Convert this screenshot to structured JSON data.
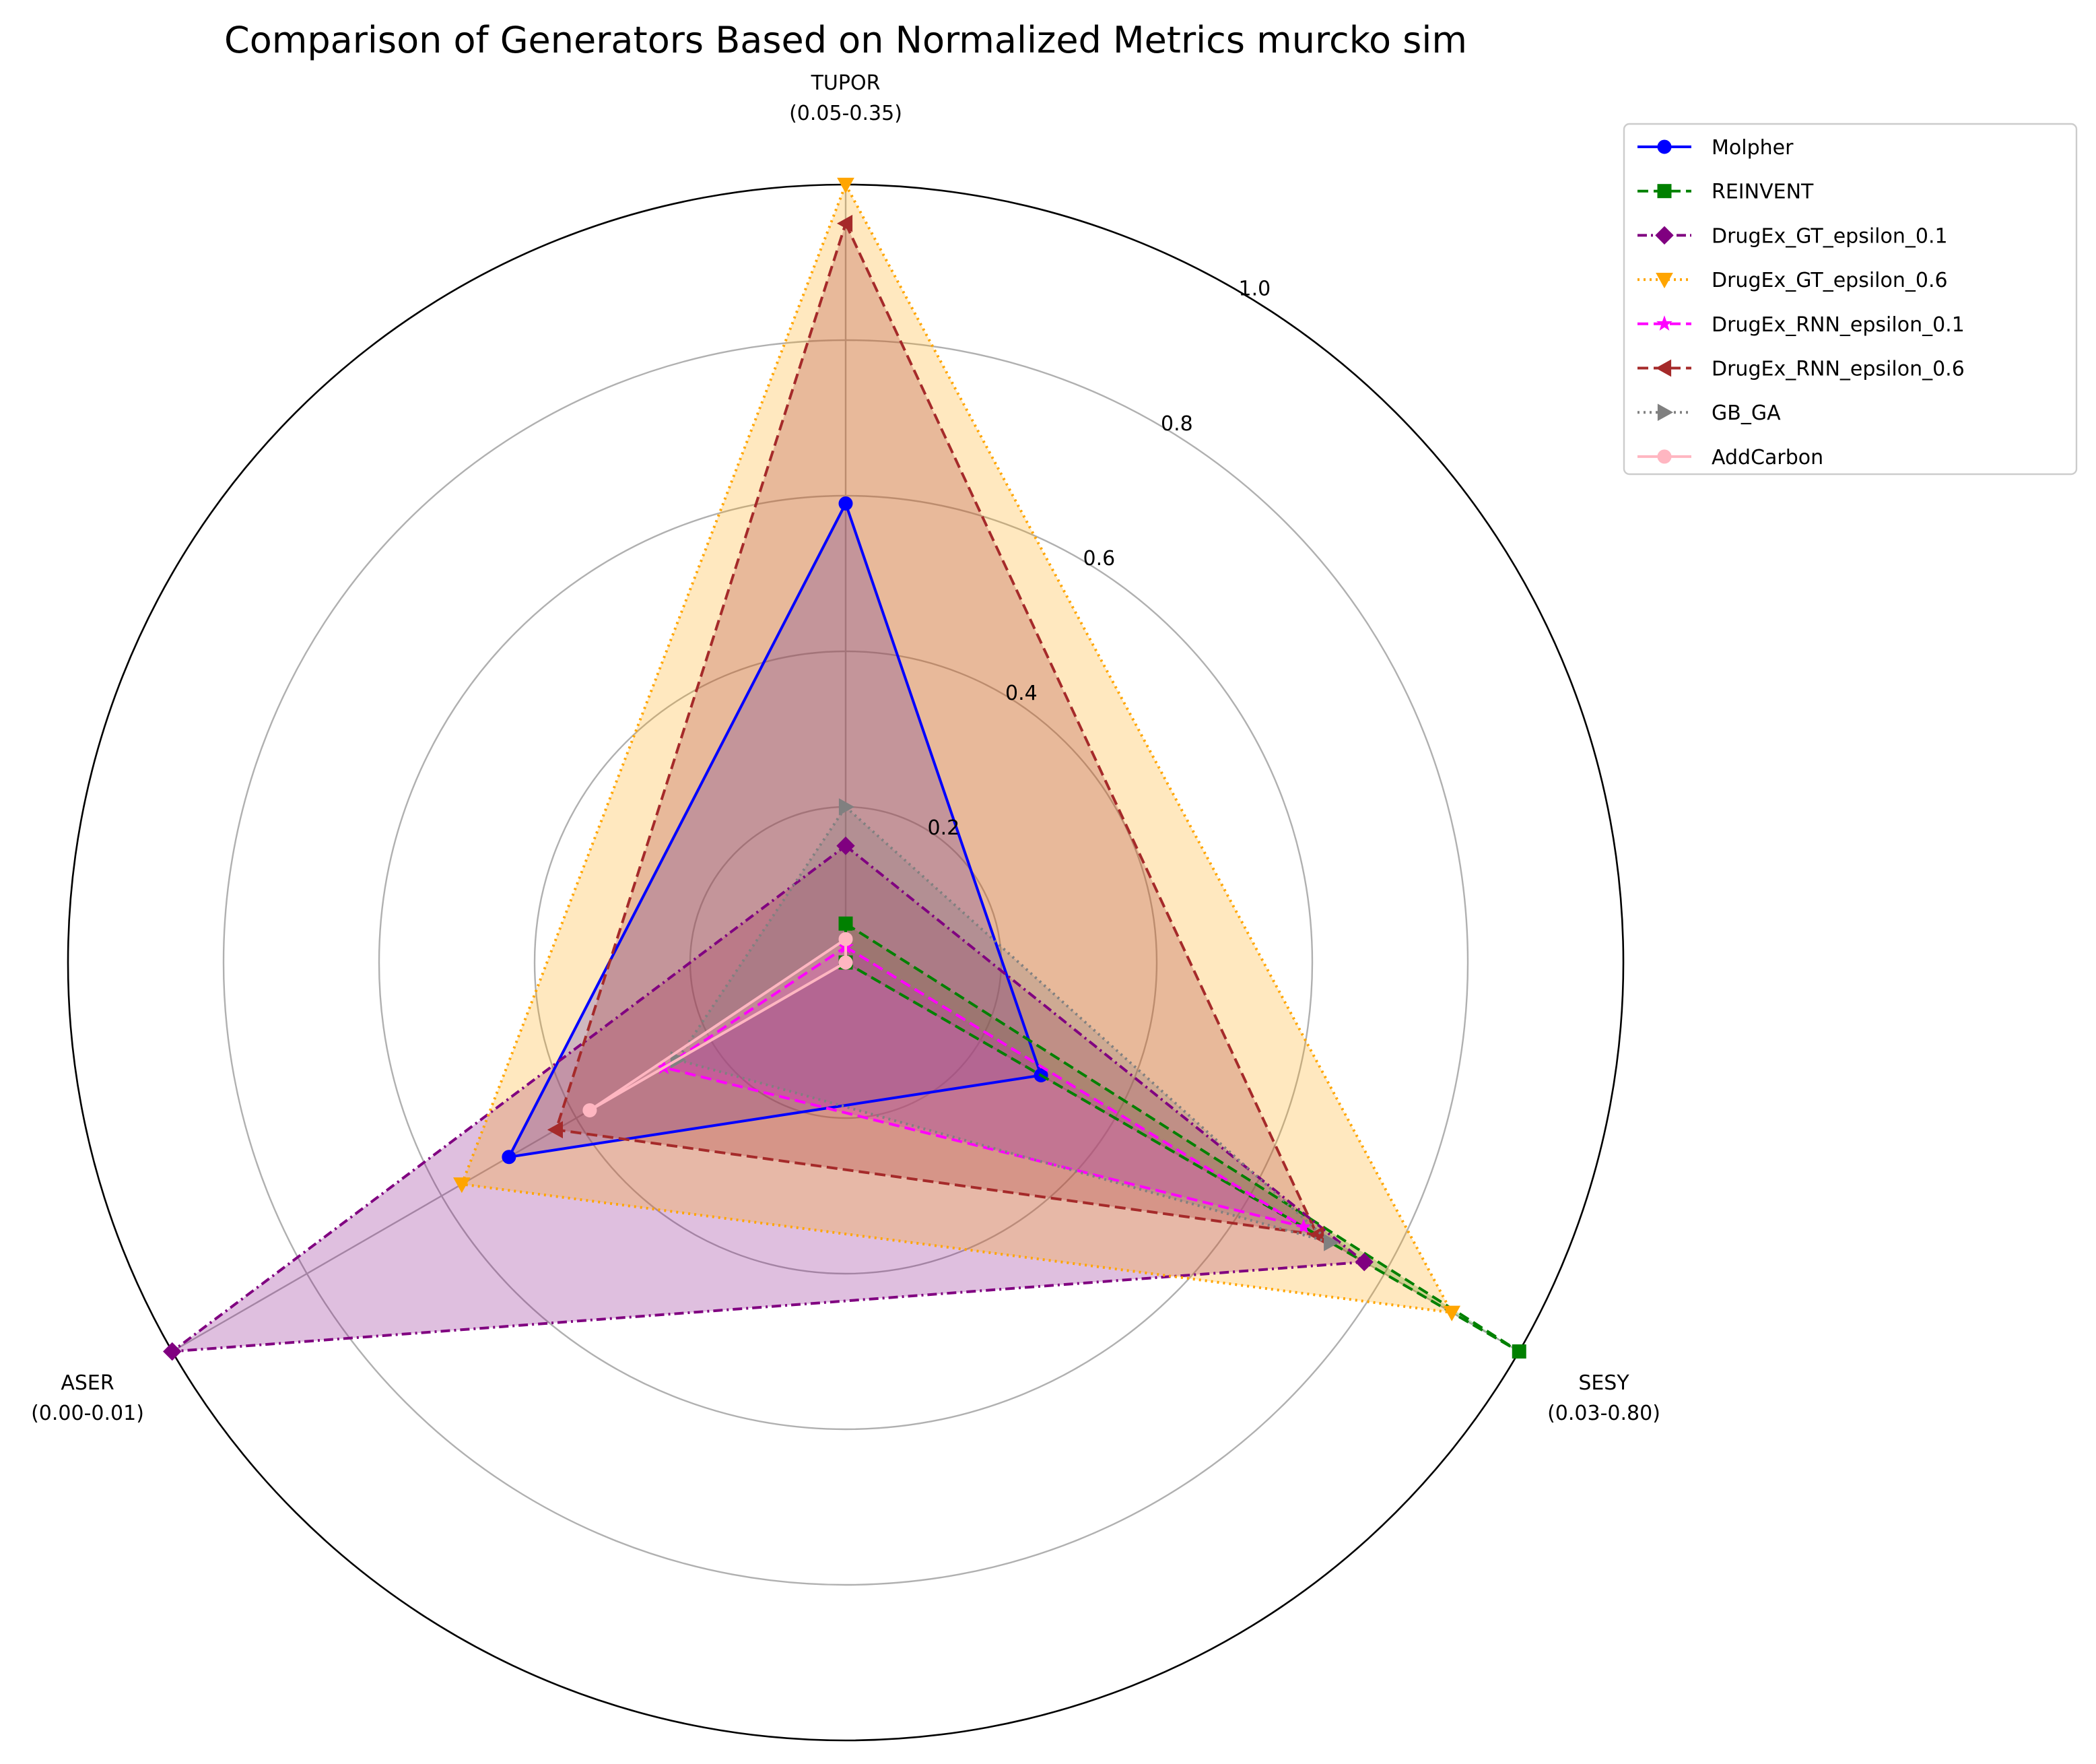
{
  "chart_data": {
    "type": "radar",
    "title": "Comparison of Generators Based on Normalized Metrics murcko sim",
    "axes": [
      {
        "name": "TUPOR",
        "range": "(0.05-0.35)"
      },
      {
        "name": "SESY",
        "range": "(0.03-0.80)"
      },
      {
        "name": "ASER",
        "range": "(0.00-0.01)"
      }
    ],
    "radial_ticks": [
      "0.2",
      "0.4",
      "0.6",
      "0.8",
      "1.0"
    ],
    "rlim": [
      0,
      1.0
    ],
    "grid": true,
    "legend_position": "top-right outside",
    "series": [
      {
        "name": "Molpher",
        "values": [
          0.59,
          0.29,
          0.5
        ],
        "color": "#0000ff",
        "dash": "",
        "marker": "circle",
        "fill": false
      },
      {
        "name": "REINVENT",
        "values": [
          0.05,
          1.0,
          0.0
        ],
        "color": "#008000",
        "dash": "16,8",
        "marker": "square",
        "fill": false
      },
      {
        "name": "DrugEx_GT_epsilon_0.1",
        "values": [
          0.15,
          0.77,
          1.0
        ],
        "color": "#800080",
        "dash": "14,6,3,6",
        "marker": "diamond",
        "fill": true
      },
      {
        "name": "DrugEx_GT_epsilon_0.6",
        "values": [
          1.0,
          0.9,
          0.57
        ],
        "color": "#ffa500",
        "dash": "3,6",
        "marker": "triangle-down",
        "fill": true
      },
      {
        "name": "DrugEx_RNN_epsilon_0.1",
        "values": [
          0.02,
          0.68,
          0.27
        ],
        "color": "#ff00ff",
        "dash": "16,8",
        "marker": "star",
        "fill": true
      },
      {
        "name": "DrugEx_RNN_epsilon_0.6",
        "values": [
          0.95,
          0.7,
          0.43
        ],
        "color": "#a52a2a",
        "dash": "16,8",
        "marker": "triangle-left",
        "fill": true
      },
      {
        "name": "GB_GA",
        "values": [
          0.2,
          0.72,
          0.25
        ],
        "color": "#808080",
        "dash": "3,6",
        "marker": "triangle-right",
        "fill": false
      },
      {
        "name": "AddCarbon",
        "values": [
          0.03,
          0.0,
          0.38
        ],
        "color": "#ffb6c1",
        "dash": "",
        "marker": "circle",
        "fill": false
      }
    ]
  }
}
